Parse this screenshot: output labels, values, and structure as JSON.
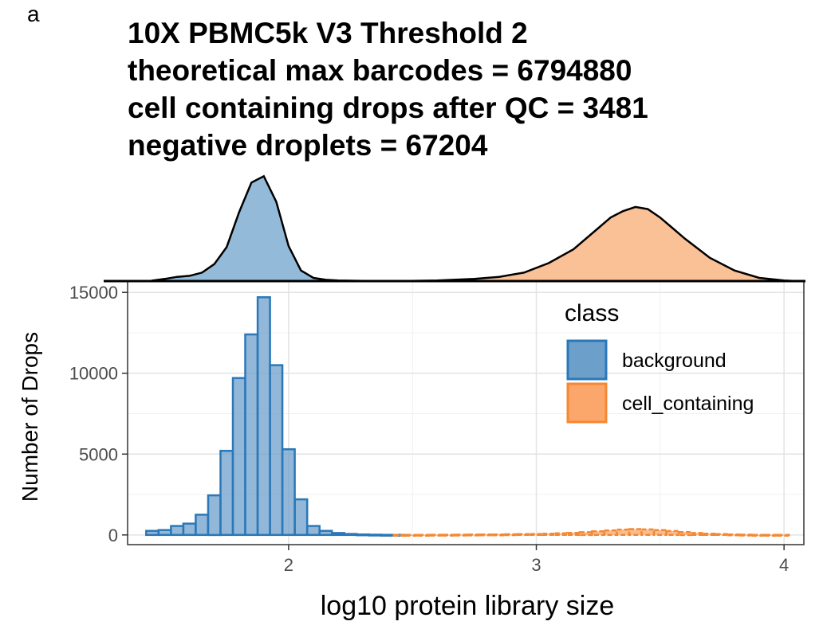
{
  "panel_label": "a",
  "title_lines": [
    "10X PBMC5k V3 Threshold 2",
    "theoretical max barcodes = 6794880",
    "cell containing drops after QC = 3481",
    "negative droplets = 67204"
  ],
  "chart_data": {
    "type": "bar",
    "xlabel": "log10 protein library size",
    "ylabel": "Number of Drops",
    "xlim": [
      1.35,
      4.08
    ],
    "ylim": [
      -600,
      15700
    ],
    "x_ticks": [
      "2",
      "3",
      "4"
    ],
    "x_tick_values": [
      2,
      3,
      4
    ],
    "y_ticks": [
      "0",
      "5000",
      "10000",
      "15000"
    ],
    "y_tick_values": [
      0,
      5000,
      10000,
      15000
    ],
    "grid": true,
    "bin_width": 0.05,
    "legend": {
      "title": "class",
      "position": "top-right-inside",
      "entries": [
        "background",
        "cell_containing"
      ]
    },
    "colors": {
      "background_fill": "#6d9fcb",
      "background_stroke": "#2a78b8",
      "cell_fill": "#fba66a",
      "cell_stroke": "#f58831",
      "density_bg": "#93bbd9",
      "density_cell": "#fbc196"
    },
    "series": [
      {
        "name": "background",
        "x": [
          1.45,
          1.5,
          1.55,
          1.6,
          1.65,
          1.7,
          1.75,
          1.8,
          1.85,
          1.9,
          1.95,
          2.0,
          2.05,
          2.1,
          2.15,
          2.2,
          2.25,
          2.3,
          2.35,
          2.4,
          2.45
        ],
        "values": [
          250,
          300,
          550,
          700,
          1250,
          2450,
          5200,
          9700,
          12400,
          14700,
          10500,
          5300,
          2200,
          550,
          250,
          120,
          60,
          30,
          15,
          8,
          4
        ]
      },
      {
        "name": "cell_containing",
        "x": [
          2.45,
          2.5,
          2.55,
          2.6,
          2.65,
          2.7,
          2.75,
          2.8,
          2.85,
          2.9,
          2.95,
          3.0,
          3.05,
          3.1,
          3.15,
          3.2,
          3.25,
          3.3,
          3.35,
          3.4,
          3.45,
          3.5,
          3.55,
          3.6,
          3.65,
          3.7,
          3.75,
          3.8,
          3.85,
          3.9,
          3.95,
          4.0
        ],
        "values": [
          4,
          6,
          8,
          10,
          12,
          15,
          20,
          25,
          30,
          40,
          50,
          60,
          80,
          100,
          130,
          170,
          220,
          280,
          330,
          360,
          340,
          300,
          240,
          180,
          120,
          80,
          50,
          30,
          15,
          8,
          4,
          2
        ]
      }
    ],
    "density": {
      "background": {
        "x": [
          1.45,
          1.5,
          1.55,
          1.6,
          1.65,
          1.7,
          1.75,
          1.8,
          1.85,
          1.9,
          1.95,
          2.0,
          2.05,
          2.1,
          2.15,
          2.2,
          2.3,
          2.45
        ],
        "y": [
          0.005,
          0.02,
          0.04,
          0.05,
          0.08,
          0.16,
          0.32,
          0.65,
          0.93,
          0.99,
          0.75,
          0.33,
          0.1,
          0.03,
          0.012,
          0.005,
          0.002,
          0.0
        ]
      },
      "cell_containing": {
        "x": [
          2.45,
          2.6,
          2.75,
          2.85,
          2.95,
          3.05,
          3.15,
          3.25,
          3.3,
          3.35,
          3.4,
          3.45,
          3.5,
          3.55,
          3.6,
          3.7,
          3.8,
          3.9,
          4.0,
          4.05
        ],
        "y": [
          0.0,
          0.005,
          0.02,
          0.04,
          0.08,
          0.17,
          0.3,
          0.5,
          0.6,
          0.66,
          0.7,
          0.68,
          0.6,
          0.5,
          0.4,
          0.22,
          0.1,
          0.03,
          0.005,
          0.0
        ]
      }
    }
  }
}
